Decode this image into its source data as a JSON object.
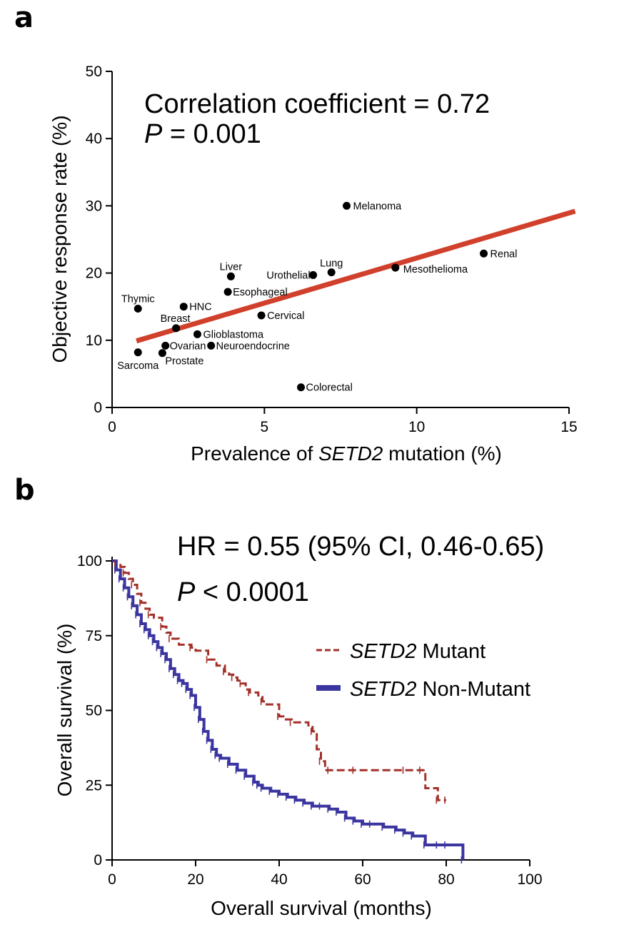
{
  "panel_labels": {
    "a": "a",
    "b": "b"
  },
  "chart_data": [
    {
      "type": "scatter",
      "panel": "a",
      "xlabel_prefix": "Prevalence of ",
      "xlabel_gene": "SETD2",
      "xlabel_suffix": " mutation (%)",
      "ylabel": "Objective response rate (%)",
      "xlim": [
        0,
        15
      ],
      "ylim": [
        0,
        50
      ],
      "xticks": [
        0,
        5,
        10,
        15
      ],
      "yticks": [
        0,
        10,
        20,
        30,
        40,
        50
      ],
      "annotation_line1": "Correlation coefficient = 0.72",
      "annotation_p_symbol": "P",
      "annotation_p_value": " = 0.001",
      "fit_line": {
        "x": [
          0.8,
          15.2
        ],
        "y": [
          9.9,
          29.2
        ],
        "color": "#d0402c"
      },
      "points": [
        {
          "label": "Melanoma",
          "x": 7.7,
          "y": 30.0
        },
        {
          "label": "Renal",
          "x": 12.2,
          "y": 22.9
        },
        {
          "label": "Mesothelioma",
          "x": 9.3,
          "y": 20.8
        },
        {
          "label": "Lung",
          "x": 7.2,
          "y": 20.1
        },
        {
          "label": "Urothelial",
          "x": 6.6,
          "y": 19.7
        },
        {
          "label": "Liver",
          "x": 3.9,
          "y": 19.5
        },
        {
          "label": "Esophageal",
          "x": 3.8,
          "y": 17.2
        },
        {
          "label": "Thymic",
          "x": 0.85,
          "y": 14.7
        },
        {
          "label": "HNC",
          "x": 2.35,
          "y": 15.0
        },
        {
          "label": "Cervical",
          "x": 4.9,
          "y": 13.7
        },
        {
          "label": "Breast",
          "x": 2.1,
          "y": 11.8
        },
        {
          "label": "Glioblastoma",
          "x": 2.8,
          "y": 10.9
        },
        {
          "label": "Ovarian",
          "x": 1.75,
          "y": 9.2
        },
        {
          "label": "Neuroendocrine",
          "x": 3.25,
          "y": 9.2
        },
        {
          "label": "Sarcoma",
          "x": 0.85,
          "y": 8.2
        },
        {
          "label": "Prostate",
          "x": 1.65,
          "y": 8.1
        },
        {
          "label": "Colorectal",
          "x": 6.2,
          "y": 3.0
        }
      ]
    },
    {
      "type": "line",
      "panel": "b",
      "xlabel": "Overall survival (months)",
      "ylabel": "Overall survival (%)",
      "xlim": [
        0,
        100
      ],
      "ylim": [
        0,
        100
      ],
      "xticks": [
        0,
        20,
        40,
        60,
        80,
        100
      ],
      "yticks": [
        0,
        25,
        50,
        75,
        100
      ],
      "annotation_hr": "HR = 0.55 (95% CI, 0.46-0.65)",
      "annotation_p_symbol": "P",
      "annotation_p_value": " < 0.0001",
      "series": [
        {
          "name_gene": "SETD2",
          "name_suffix": " Mutant",
          "color": "#a3302a",
          "style": "dashed",
          "x": [
            0,
            1,
            2,
            3,
            4,
            5,
            6,
            7,
            8,
            9,
            10,
            12,
            13,
            14,
            16,
            19,
            20,
            23,
            25,
            27,
            28,
            29,
            30,
            31,
            32,
            33,
            35,
            36,
            37,
            40,
            41,
            43,
            47,
            48,
            49,
            50,
            51,
            52,
            55,
            58,
            65,
            70,
            73,
            74,
            75,
            78,
            79,
            80
          ],
          "y": [
            100,
            99,
            98,
            96,
            94,
            92,
            89,
            86,
            84,
            82,
            81,
            78,
            76,
            74,
            72,
            71,
            70,
            67,
            65,
            63,
            62,
            61,
            60,
            59,
            57,
            56,
            55,
            53,
            52,
            48,
            47,
            46,
            45,
            43,
            37,
            33,
            30,
            30,
            30,
            30,
            30,
            30,
            30,
            30,
            24,
            20,
            20,
            20
          ]
        },
        {
          "name_gene": "SETD2",
          "name_suffix": " Non-Mutant",
          "color": "#3b35a0",
          "style": "solid",
          "x": [
            0,
            1,
            2,
            3,
            4,
            5,
            6,
            7,
            8,
            9,
            10,
            11,
            12,
            13,
            14,
            15,
            16,
            17,
            18,
            19,
            20,
            21,
            22,
            23,
            24,
            25,
            26,
            28,
            30,
            32,
            34,
            35,
            36,
            38,
            40,
            42,
            44,
            46,
            48,
            50,
            52,
            54,
            56,
            58,
            60,
            62,
            65,
            68,
            70,
            72,
            75,
            78,
            80,
            84
          ],
          "y": [
            100,
            97,
            94,
            91,
            88,
            85,
            82,
            79,
            77,
            75,
            73,
            71,
            69,
            67,
            64,
            62,
            60,
            59,
            57,
            55,
            51,
            47,
            43,
            40,
            37,
            35,
            34,
            32,
            30,
            28,
            26,
            25,
            24,
            23,
            22,
            21,
            20,
            19,
            18,
            18,
            17,
            16,
            14,
            13,
            12,
            12,
            11,
            10,
            9,
            8,
            5,
            5,
            5,
            0
          ]
        }
      ]
    }
  ]
}
